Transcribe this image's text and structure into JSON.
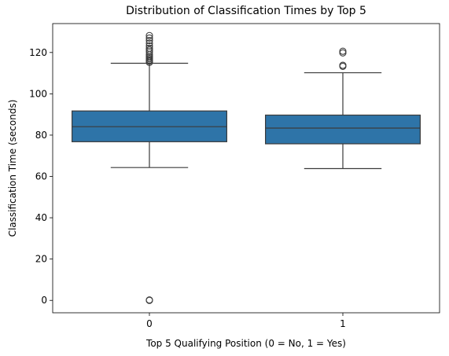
{
  "chart_data": {
    "type": "box",
    "title": "Distribution of Classification Times by Top 5",
    "xlabel": "Top 5 Qualifying Position (0 = No, 1 = Yes)",
    "ylabel": "Classification Time (seconds)",
    "categories": [
      "0",
      "1"
    ],
    "ylim": [
      -6,
      134
    ],
    "yticks": [
      0,
      20,
      40,
      60,
      80,
      100,
      120
    ],
    "grid": false,
    "box_color": "#2e74a8",
    "line_color": "#3b3b3b",
    "boxes": [
      {
        "category": "0",
        "whisker_low": 64.3,
        "q1": 76.8,
        "median": 84.1,
        "q3": 91.7,
        "whisker_high": 114.8,
        "outliers": [
          0.0,
          0.2,
          115.2,
          115.8,
          116.3,
          116.9,
          117.5,
          118.2,
          119.1,
          120.3,
          121.2,
          122.1,
          123.2,
          124.5,
          125.8,
          127.0,
          128.2
        ]
      },
      {
        "category": "1",
        "whisker_low": 63.8,
        "q1": 75.8,
        "median": 83.4,
        "q3": 89.7,
        "whisker_high": 110.2,
        "outliers": [
          113.3,
          113.8,
          119.8,
          120.6
        ]
      }
    ]
  }
}
